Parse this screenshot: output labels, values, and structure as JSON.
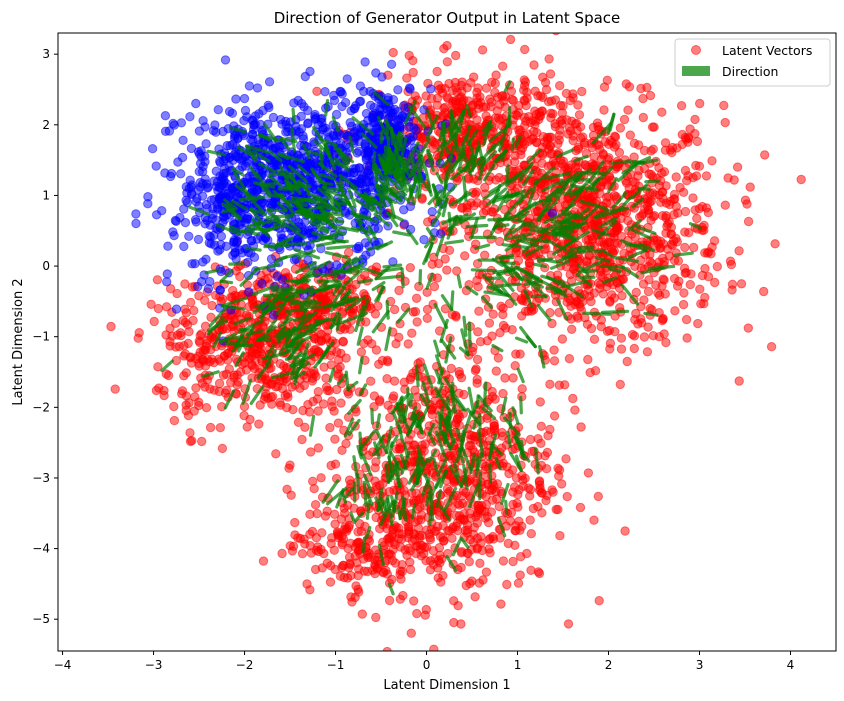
{
  "chart_data": {
    "type": "scatter",
    "title": "Direction of Generator Output in Latent Space",
    "xlabel": "Latent Dimension 1",
    "ylabel": "Latent Dimension 2",
    "xlim": [
      -4.05,
      4.5
    ],
    "ylim": [
      -5.45,
      3.3
    ],
    "xticks": [
      -4,
      -3,
      -2,
      -1,
      0,
      1,
      2,
      3,
      4
    ],
    "yticks": [
      -5,
      -4,
      -3,
      -2,
      -1,
      0,
      1,
      2,
      3
    ],
    "legend_position": "top-right",
    "legend": [
      {
        "label": "Latent Vectors",
        "marker": "circle",
        "color": "#ff0000"
      },
      {
        "label": "Direction",
        "marker": "patch",
        "color": "#008000"
      }
    ],
    "series": [
      {
        "name": "Latent Vectors",
        "role": "cluster-class-a",
        "color": "#ff0000",
        "opacity": 0.5,
        "clusters": [
          {
            "center": [
              1.75,
              0.55
            ],
            "spread": [
              0.75,
              0.85
            ],
            "count": 1100
          },
          {
            "center": [
              0.45,
              1.9
            ],
            "spread": [
              0.55,
              0.45
            ],
            "count": 450
          },
          {
            "center": [
              0.2,
              -2.9
            ],
            "spread": [
              0.6,
              0.85
            ],
            "count": 750
          },
          {
            "center": [
              -0.6,
              -3.9
            ],
            "spread": [
              0.45,
              0.35
            ],
            "count": 200
          },
          {
            "center": [
              -1.85,
              -1.3
            ],
            "spread": [
              0.55,
              0.5
            ],
            "count": 450
          },
          {
            "center": [
              -1.35,
              -0.5
            ],
            "spread": [
              0.6,
              0.25
            ],
            "count": 300
          }
        ]
      },
      {
        "name": "Latent Vectors",
        "role": "cluster-class-b",
        "color": "#0000ff",
        "opacity": 0.5,
        "clusters": [
          {
            "center": [
              -1.4,
              1.25
            ],
            "spread": [
              0.65,
              0.55
            ],
            "count": 850
          },
          {
            "center": [
              -2.1,
              0.6
            ],
            "spread": [
              0.4,
              0.5
            ],
            "count": 200
          },
          {
            "center": [
              -0.45,
              1.9
            ],
            "spread": [
              0.2,
              0.35
            ],
            "count": 200
          }
        ]
      },
      {
        "name": "Direction",
        "role": "direction-arrows",
        "color": "#008000",
        "opacity": 0.7,
        "count": 900
      }
    ]
  }
}
